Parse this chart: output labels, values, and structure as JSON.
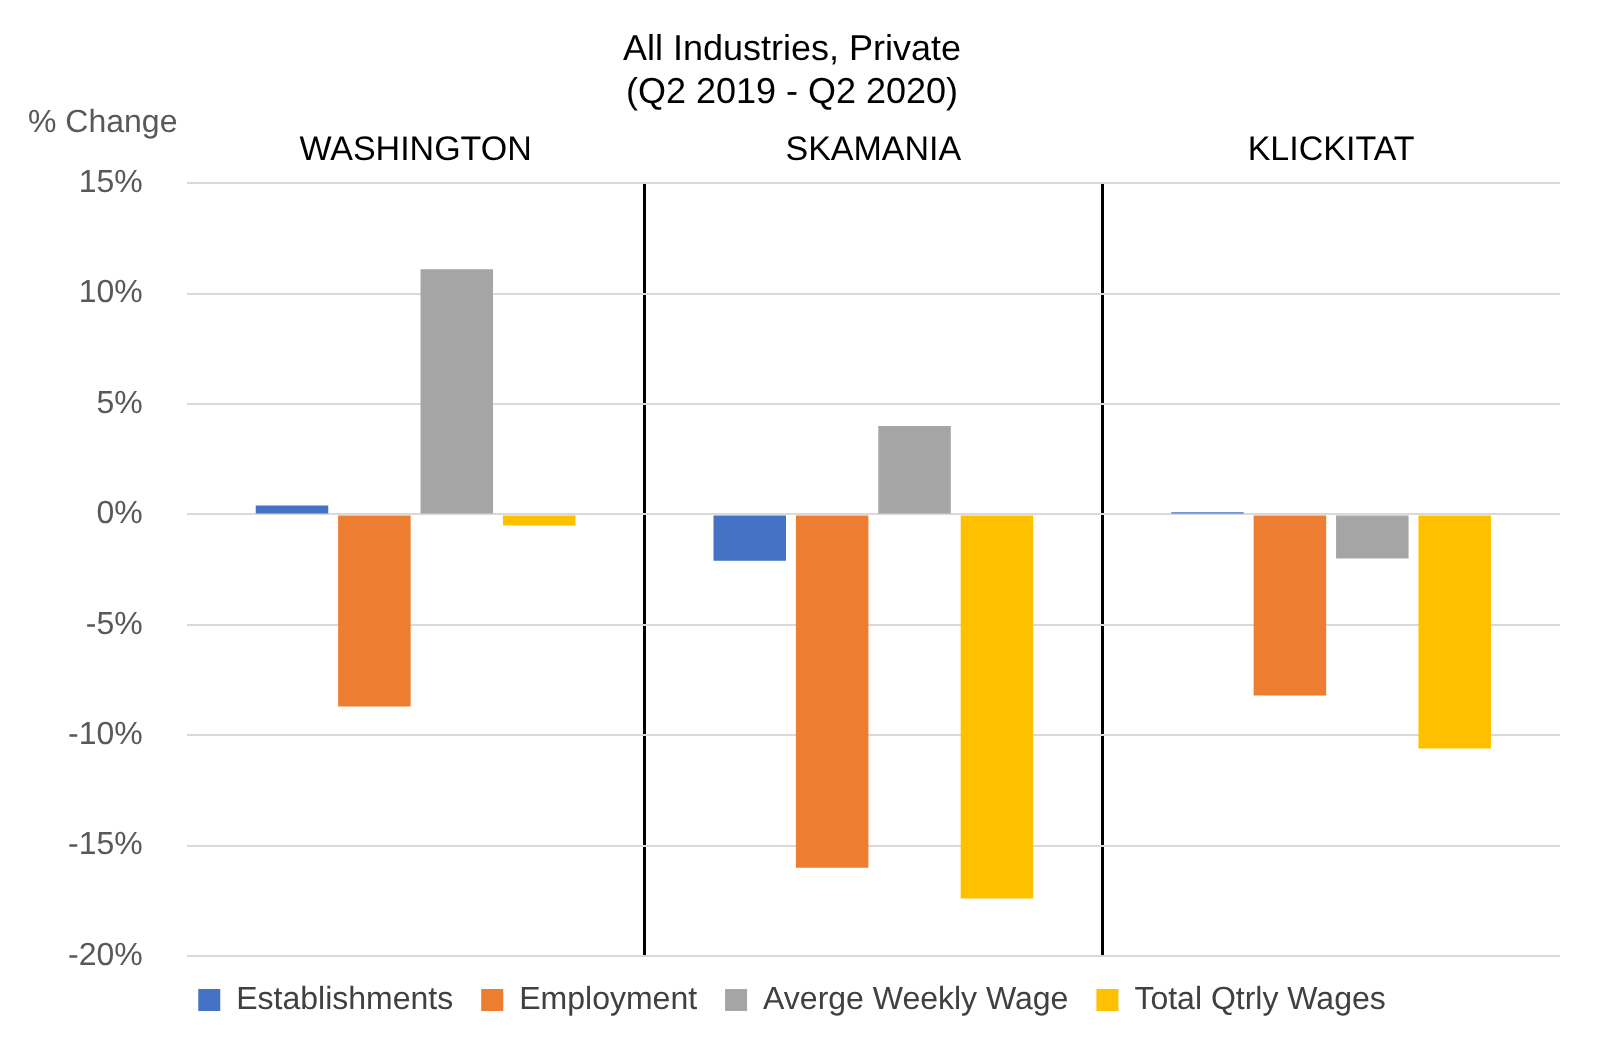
{
  "chart_data": {
    "type": "bar",
    "title": "All Industries, Private\n(Q2 2019 - Q2 2020)",
    "ylabel": "% Change",
    "categories": [
      "WASHINGTON",
      "SKAMANIA",
      "KLICKITAT"
    ],
    "series": [
      {
        "name": "Establishments",
        "color": "#4472c4",
        "values": [
          0.4,
          -2.1,
          0.1
        ]
      },
      {
        "name": "Employment",
        "color": "#ed7d31",
        "values": [
          -8.7,
          -16.0,
          -8.2
        ]
      },
      {
        "name": "Averge Weekly Wage",
        "color": "#a5a5a5",
        "values": [
          11.1,
          4.0,
          -2.0
        ]
      },
      {
        "name": "Total Qtrly Wages",
        "color": "#ffc000",
        "values": [
          -0.5,
          -17.4,
          -10.6
        ]
      }
    ],
    "ylim": [
      -20,
      15
    ],
    "yticks": [
      {
        "value": -20,
        "label": "-20%"
      },
      {
        "value": -15,
        "label": "-15%"
      },
      {
        "value": -10,
        "label": "-10%"
      },
      {
        "value": -5,
        "label": "-5%"
      },
      {
        "value": 0,
        "label": "0%"
      },
      {
        "value": 5,
        "label": "5%"
      },
      {
        "value": 10,
        "label": "10%"
      },
      {
        "value": 15,
        "label": "15%"
      }
    ],
    "grid": "y",
    "legend": "bottom"
  }
}
